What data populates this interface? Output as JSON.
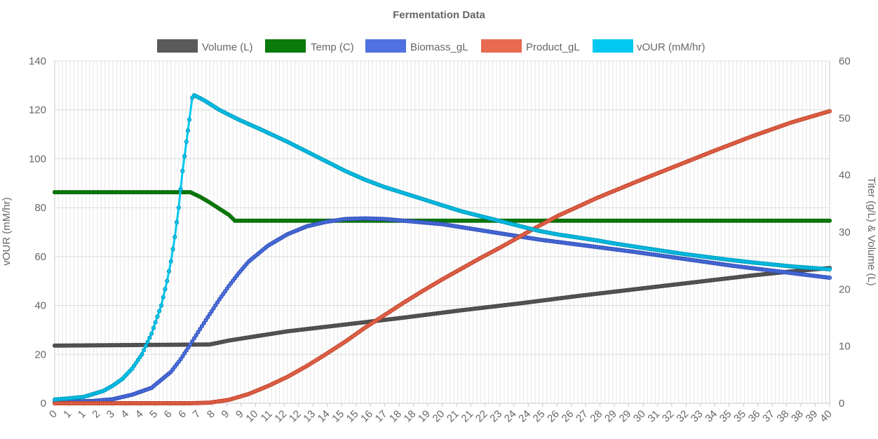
{
  "chart_data": {
    "type": "line",
    "title": "Fermentation Data",
    "x": {
      "min": 0,
      "max": 40,
      "tick_labels": [
        "0",
        "1",
        "1",
        "2",
        "3",
        "4",
        "4",
        "5",
        "6",
        "6",
        "7",
        "8",
        "9",
        "9",
        "10",
        "11",
        "12",
        "12",
        "13",
        "14",
        "15",
        "15",
        "16",
        "17",
        "18",
        "18",
        "19",
        "20",
        "21",
        "21",
        "22",
        "23",
        "24",
        "24",
        "25",
        "26",
        "26",
        "27",
        "28",
        "29",
        "29",
        "30",
        "31",
        "32",
        "32",
        "33",
        "34",
        "35",
        "35",
        "36",
        "37",
        "38",
        "38",
        "39",
        "40"
      ]
    },
    "y_left": {
      "label": "vOUR (mM/hr)",
      "min": 0,
      "max": 140,
      "ticks": [
        0,
        20,
        40,
        60,
        80,
        100,
        120,
        140
      ]
    },
    "y_right": {
      "label": "Titer (g/L) & Volume (L)",
      "min": 0,
      "max": 60,
      "ticks": [
        0,
        10,
        20,
        30,
        40,
        50,
        60
      ]
    },
    "grid": true,
    "legend": {
      "placement": "top"
    },
    "series": [
      {
        "name": "Volume (L)",
        "axis": "right",
        "color": "#5a5a5a",
        "point_color": "#444444",
        "points": [
          [
            0,
            10.1
          ],
          [
            8,
            10.3
          ],
          [
            9,
            11.0
          ],
          [
            12,
            12.6
          ],
          [
            15,
            13.8
          ],
          [
            18,
            15.0
          ],
          [
            21,
            16.3
          ],
          [
            24,
            17.5
          ],
          [
            27,
            18.8
          ],
          [
            30,
            20.0
          ],
          [
            33,
            21.2
          ],
          [
            36,
            22.4
          ],
          [
            38,
            23.1
          ],
          [
            40,
            23.7
          ]
        ]
      },
      {
        "name": "Temp (C)",
        "axis": "right",
        "color": "#0a7a0a",
        "point_color": "#0a6e0a",
        "points": [
          [
            0,
            37
          ],
          [
            7.0,
            37
          ],
          [
            7.5,
            36.2
          ],
          [
            8.0,
            35.2
          ],
          [
            8.5,
            34.1
          ],
          [
            9.0,
            33.0
          ],
          [
            9.3,
            32
          ],
          [
            40,
            32
          ]
        ]
      },
      {
        "name": "Biomass_gL",
        "axis": "right",
        "color": "#4f72e0",
        "point_color": "#2f4fb8",
        "points": [
          [
            0,
            0.2
          ],
          [
            2,
            0.4
          ],
          [
            3,
            0.7
          ],
          [
            4,
            1.5
          ],
          [
            5,
            2.7
          ],
          [
            6,
            5.5
          ],
          [
            6.5,
            7.7
          ],
          [
            7,
            10.3
          ],
          [
            7.5,
            13.0
          ],
          [
            8,
            15.6
          ],
          [
            8.5,
            18.2
          ],
          [
            9,
            20.6
          ],
          [
            9.5,
            22.8
          ],
          [
            10,
            24.8
          ],
          [
            11,
            27.6
          ],
          [
            12,
            29.6
          ],
          [
            13,
            31.0
          ],
          [
            14,
            31.8
          ],
          [
            15,
            32.3
          ],
          [
            16,
            32.4
          ],
          [
            17,
            32.3
          ],
          [
            20,
            31.4
          ],
          [
            25,
            28.7
          ],
          [
            30,
            26.5
          ],
          [
            35,
            24.1
          ],
          [
            40,
            22.0
          ]
        ]
      },
      {
        "name": "Product_gL",
        "axis": "right",
        "color": "#e86a50",
        "point_color": "#c0432a",
        "points": [
          [
            0,
            0
          ],
          [
            7,
            0
          ],
          [
            8,
            0.1
          ],
          [
            9,
            0.6
          ],
          [
            10,
            1.6
          ],
          [
            11,
            3.0
          ],
          [
            12,
            4.6
          ],
          [
            13,
            6.5
          ],
          [
            14,
            8.6
          ],
          [
            15,
            10.8
          ],
          [
            16,
            13.2
          ],
          [
            17,
            15.4
          ],
          [
            18,
            17.6
          ],
          [
            19,
            19.7
          ],
          [
            20,
            21.7
          ],
          [
            21,
            23.6
          ],
          [
            22,
            25.5
          ],
          [
            23,
            27.3
          ],
          [
            24,
            29.2
          ],
          [
            25,
            31.1
          ],
          [
            26,
            32.9
          ],
          [
            28,
            36.0
          ],
          [
            30,
            38.8
          ],
          [
            32,
            41.5
          ],
          [
            34,
            44.2
          ],
          [
            36,
            46.8
          ],
          [
            38,
            49.2
          ],
          [
            40,
            51.2
          ]
        ]
      },
      {
        "name": "vOUR (mM/hr)",
        "axis": "left",
        "color": "#00c8f0",
        "point_color": "#0099bb",
        "points": [
          [
            0,
            1.5
          ],
          [
            1,
            2.2
          ],
          [
            1.5,
            2.6
          ],
          [
            2,
            3.8
          ],
          [
            2.5,
            5.0
          ],
          [
            3,
            7.2
          ],
          [
            3.5,
            10.0
          ],
          [
            4,
            14.2
          ],
          [
            4.5,
            20.0
          ],
          [
            5,
            28.5
          ],
          [
            5.5,
            40.0
          ],
          [
            5.8,
            50.0
          ],
          [
            6.0,
            58.0
          ],
          [
            6.2,
            68.0
          ],
          [
            6.4,
            80.0
          ],
          [
            6.6,
            95.0
          ],
          [
            6.8,
            107.0
          ],
          [
            6.95,
            116.0
          ],
          [
            7.1,
            125.0
          ],
          [
            7.2,
            126.0
          ],
          [
            7.7,
            124.0
          ],
          [
            8.5,
            120.0
          ],
          [
            9.5,
            116.0
          ],
          [
            10.5,
            112.5
          ],
          [
            12,
            107.0
          ],
          [
            13,
            103.0
          ],
          [
            14,
            99.0
          ],
          [
            15,
            95.0
          ],
          [
            16,
            91.5
          ],
          [
            17,
            88.5
          ],
          [
            18,
            86.0
          ],
          [
            19,
            83.5
          ],
          [
            20,
            81.0
          ],
          [
            21,
            78.5
          ],
          [
            22,
            76.5
          ],
          [
            23,
            74.5
          ],
          [
            24,
            72.5
          ],
          [
            25,
            70.5
          ],
          [
            26,
            69.0
          ],
          [
            27,
            67.8
          ],
          [
            28,
            66.6
          ],
          [
            29,
            65.2
          ],
          [
            30,
            64.0
          ],
          [
            31,
            62.8
          ],
          [
            32,
            61.6
          ],
          [
            33,
            60.5
          ],
          [
            34,
            59.5
          ],
          [
            35,
            58.5
          ],
          [
            36,
            57.6
          ],
          [
            37,
            56.8
          ],
          [
            38,
            56.0
          ],
          [
            39,
            55.4
          ],
          [
            40,
            54.8
          ]
        ]
      }
    ]
  }
}
